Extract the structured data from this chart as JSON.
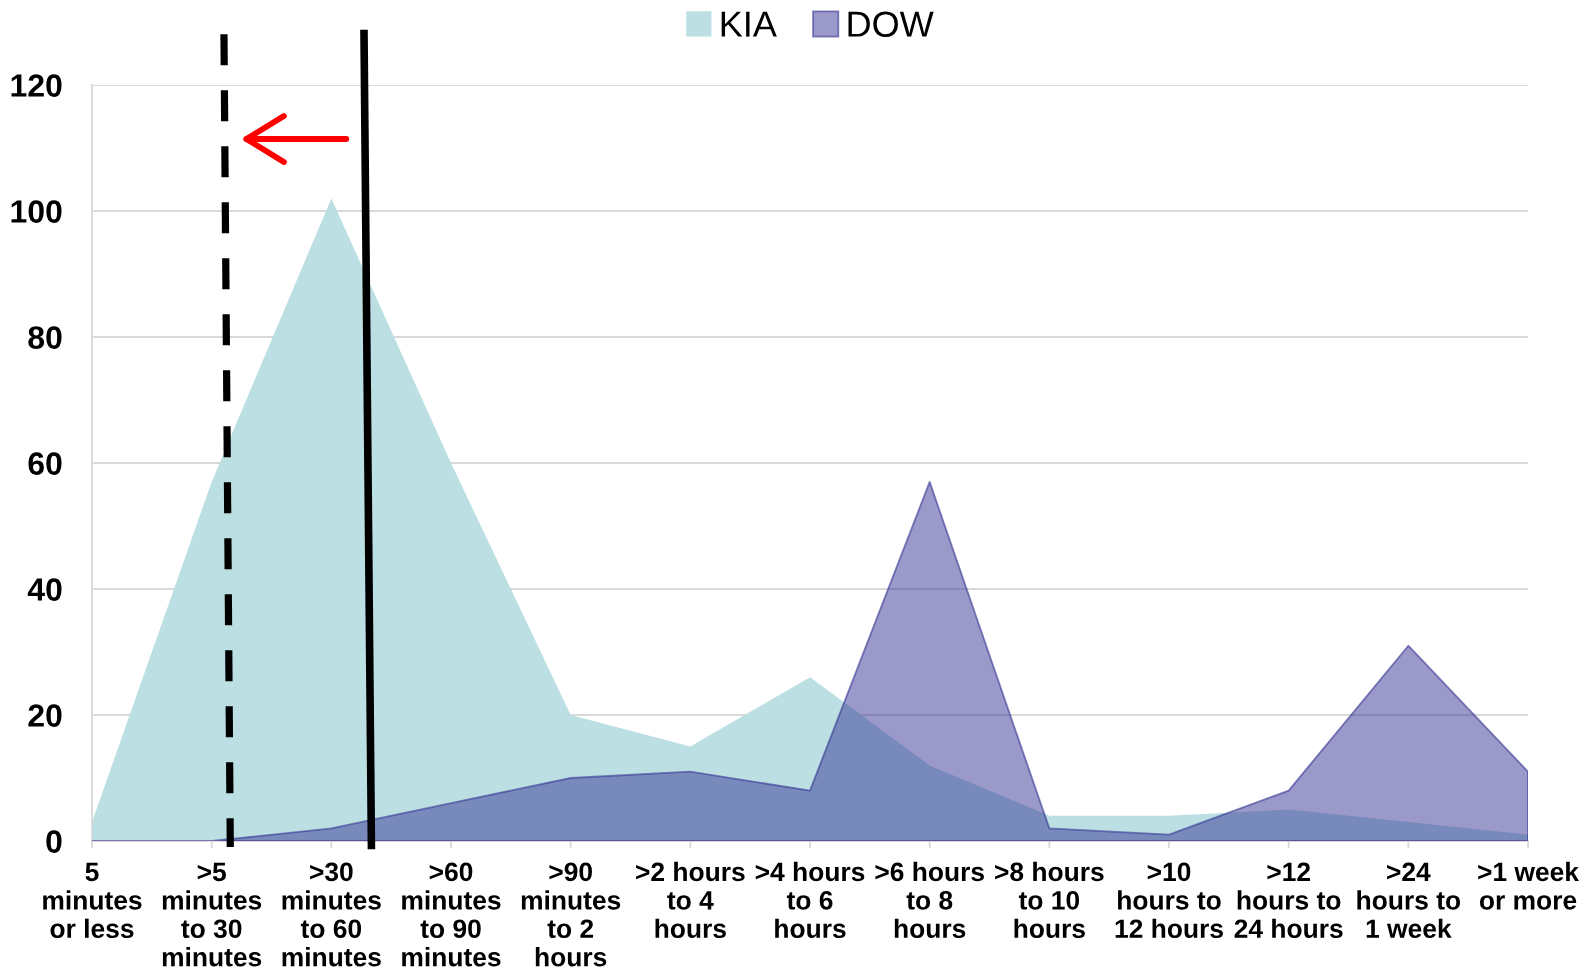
{
  "chart_data": {
    "type": "area",
    "categories": [
      "5 minutes or less",
      ">5 minutes to 30 minutes",
      ">30 minutes to 60 minutes",
      ">60 minutes to 90 minutes",
      ">90 minutes to 2 hours",
      ">2 hours to 4 hours",
      ">4 hours to 6 hours",
      ">6 hours to 8 hours",
      ">8 hours to 10 hours",
      ">10 hours to 12 hours",
      ">12 hours to 24 hours",
      ">24 hours to 1 week",
      ">1 week or more"
    ],
    "series": [
      {
        "name": "KIA",
        "color": "#bbdfe2",
        "values": [
          3,
          57,
          102,
          60,
          20,
          15,
          26,
          12,
          4,
          4,
          5,
          3,
          1
        ]
      },
      {
        "name": "DOW",
        "color": "#9a99c9",
        "values": [
          0,
          0,
          2,
          6,
          10,
          11,
          8,
          57,
          2,
          1,
          8,
          31,
          11
        ]
      }
    ],
    "ylim": [
      0,
      120
    ],
    "yticks": [
      0,
      20,
      40,
      60,
      80,
      100,
      120
    ],
    "grid": "y",
    "legend": "top"
  }
}
